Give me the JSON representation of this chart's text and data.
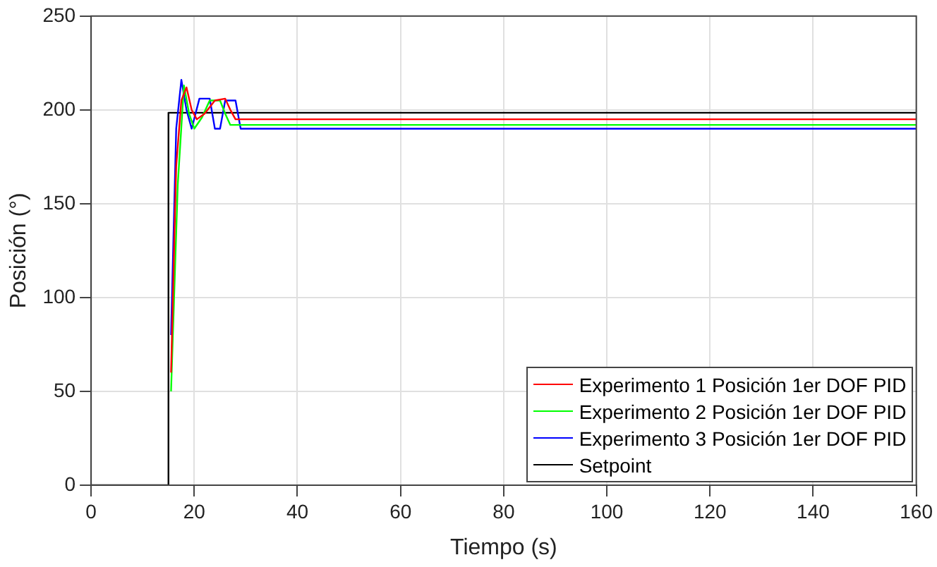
{
  "chart_data": {
    "type": "line",
    "xlabel": "Tiempo (s)",
    "ylabel": "Posición (°)",
    "xlim": [
      0,
      160
    ],
    "xticks": [
      0,
      20,
      40,
      60,
      80,
      100,
      120,
      140,
      160
    ],
    "ylim": [
      0,
      250
    ],
    "yticks": [
      0,
      50,
      100,
      150,
      200,
      250
    ],
    "grid": true,
    "legend": "bottom right",
    "marker": "none",
    "line_style": "solid",
    "series": [
      {
        "name": "Experimento 1 Posición 1er DOF PID",
        "color": "#ff0000",
        "x": [
          15.5,
          16.5,
          17.5,
          18.5,
          19.5,
          20.5,
          22,
          24,
          26,
          27,
          28,
          40,
          60,
          80,
          100,
          120,
          140,
          160
        ],
        "values": [
          60,
          170,
          205,
          212,
          200,
          195,
          198,
          205,
          206,
          200,
          195,
          195,
          195,
          195,
          195,
          195,
          195,
          195
        ]
      },
      {
        "name": "Experimento 2 Posición 1er DOF PID",
        "color": "#00ff00",
        "x": [
          15.5,
          16.8,
          18,
          19,
          20,
          21.5,
          23,
          25,
          26,
          27,
          40,
          60,
          80,
          100,
          120,
          140,
          160
        ],
        "values": [
          50,
          160,
          213,
          198,
          190,
          196,
          205,
          205,
          198,
          192,
          192,
          192,
          192,
          192,
          192,
          192,
          192
        ]
      },
      {
        "name": "Experimento 3 Posición 1er DOF PID",
        "color": "#0000ff",
        "x": [
          15.5,
          16.5,
          17.5,
          18.5,
          19.5,
          21,
          23,
          24,
          25,
          26,
          28,
          29,
          40,
          60,
          80,
          100,
          120,
          140,
          160
        ],
        "values": [
          80,
          190,
          216,
          200,
          190,
          206,
          206,
          190,
          190,
          205,
          205,
          190,
          190,
          190,
          190,
          190,
          190,
          190,
          190
        ]
      },
      {
        "name": "Setpoint",
        "color": "#000000",
        "x": [
          0,
          15,
          15,
          160
        ],
        "values": [
          0,
          0,
          198.5,
          198.5
        ]
      }
    ]
  }
}
